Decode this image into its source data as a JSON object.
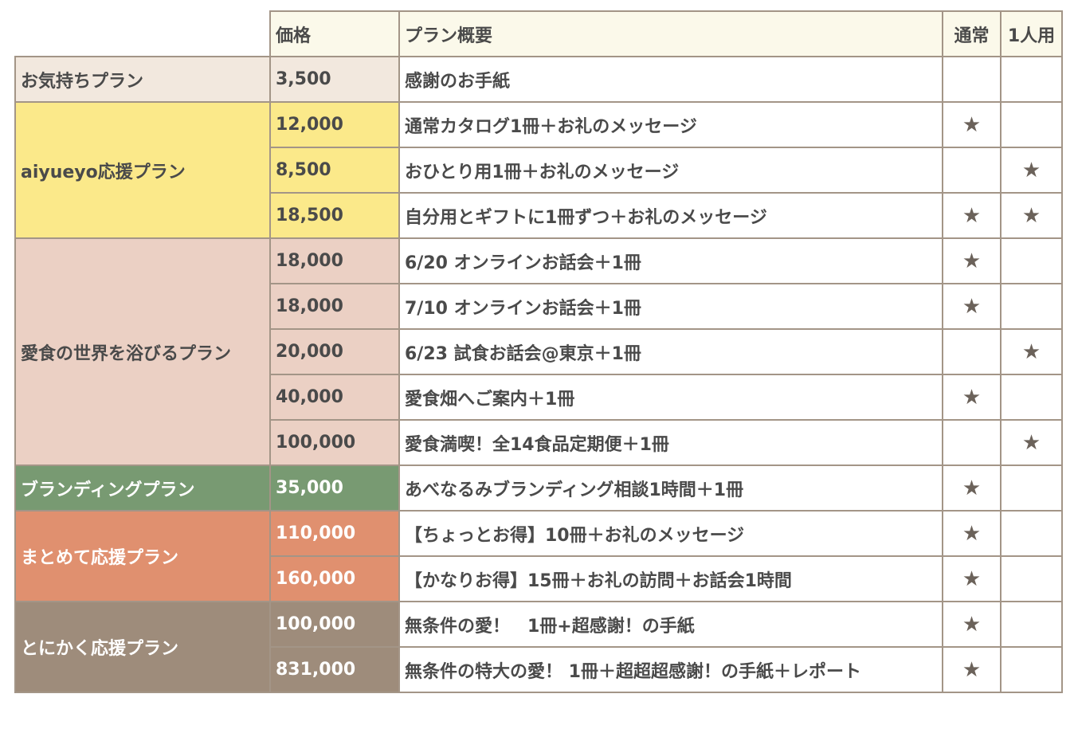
{
  "header": {
    "price": "価格",
    "summary": "プラン概要",
    "normal": "通常",
    "single": "1人用"
  },
  "star": "★",
  "groups": [
    {
      "name": "お気持ちプラン"
    },
    {
      "name": "aiyueyo応援プラン"
    },
    {
      "name": "愛食の世界を浴びるプラン"
    },
    {
      "name": "ブランディングプラン"
    },
    {
      "name": "まとめて応援プラン"
    },
    {
      "name": "とにかく応援プラン"
    }
  ],
  "rows": [
    {
      "price": "3,500",
      "desc": "感謝のお手紙",
      "normal": "",
      "single": ""
    },
    {
      "price": "12,000",
      "desc": "通常カタログ1冊＋お礼のメッセージ",
      "normal": "★",
      "single": ""
    },
    {
      "price": "8,500",
      "desc": "おひとり用1冊＋お礼のメッセージ",
      "normal": "",
      "single": "★"
    },
    {
      "price": "18,500",
      "desc": "自分用とギフトに1冊ずつ＋お礼のメッセージ",
      "normal": "★",
      "single": "★"
    },
    {
      "price": "18,000",
      "desc": "6/20 オンラインお話会＋1冊",
      "normal": "★",
      "single": ""
    },
    {
      "price": "18,000",
      "desc": "7/10 オンラインお話会＋1冊",
      "normal": "★",
      "single": ""
    },
    {
      "price": "20,000",
      "desc": "6/23 試食お話会@東京＋1冊",
      "normal": "",
      "single": "★"
    },
    {
      "price": "40,000",
      "desc": "愛食畑へご案内＋1冊",
      "normal": "★",
      "single": ""
    },
    {
      "price": "100,000",
      "desc": "愛食満喫！全14食品定期便＋1冊",
      "normal": "",
      "single": "★"
    },
    {
      "price": "35,000",
      "desc": "あべなるみブランディング相談1時間＋1冊",
      "normal": "★",
      "single": ""
    },
    {
      "price": "110,000",
      "desc": "【ちょっとお得】10冊＋お礼のメッセージ",
      "normal": "★",
      "single": ""
    },
    {
      "price": "160,000",
      "desc": "【かなりお得】15冊＋お礼の訪問＋お話会1時間",
      "normal": "★",
      "single": ""
    },
    {
      "price": "100,000",
      "desc": "無条件の愛！　1冊+超感謝！の手紙",
      "normal": "★",
      "single": ""
    },
    {
      "price": "831,000",
      "desc": "無条件の特大の愛！ 1冊＋超超超感謝！の手紙＋レポート",
      "normal": "★",
      "single": ""
    }
  ]
}
